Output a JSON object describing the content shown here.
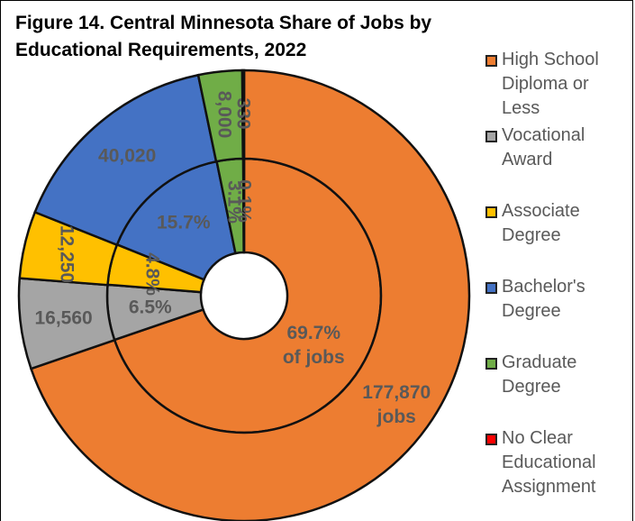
{
  "chart_data": {
    "type": "donut",
    "title": "Figure 14. Central Minnesota Share of Jobs by Educational Requirements, 2022",
    "categories": [
      "High School Diploma or Less",
      "Vocational Award",
      "Associate Degree",
      "Bachelor's Degree",
      "Graduate Degree",
      "No Clear Educational Assignment"
    ],
    "colors": [
      "#ED7D31",
      "#A5A5A5",
      "#FFC000",
      "#4472C4",
      "#70AD47",
      "#FF0000"
    ],
    "rings": [
      {
        "values": [
          69.7,
          6.5,
          4.8,
          15.7,
          3.1,
          0.1
        ],
        "value_labels": [
          "69.7%\nof jobs",
          "6.5%",
          "4.8%",
          "15.7%",
          "3.1%",
          "0.1%"
        ]
      },
      {
        "values": [
          177870,
          16560,
          12250,
          40020,
          8000,
          330
        ],
        "value_labels": [
          "177,870\njobs",
          "16,560",
          "12,250",
          "40,020",
          "8,000",
          "330"
        ]
      }
    ],
    "legend": "right"
  }
}
